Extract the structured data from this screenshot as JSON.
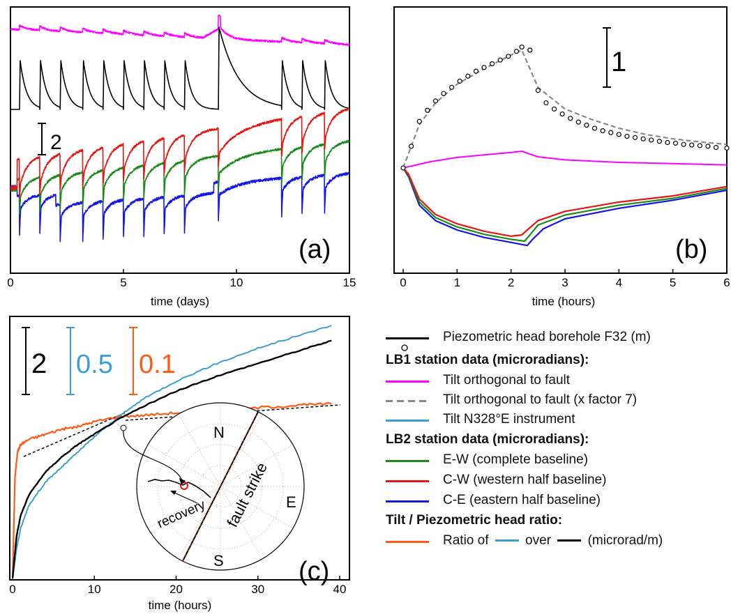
{
  "colors": {
    "magenta": "#ff00ff",
    "black": "#000000",
    "red": "#e8140f",
    "green": "#1a8a1a",
    "blue": "#1515e6",
    "gray": "#888888",
    "lightblue": "#3a9fd0",
    "orange": "#ff5a14"
  },
  "panels": {
    "a": {
      "label": "(a)",
      "xlabel": "time (days)",
      "xticks": [
        "0",
        "5",
        "10",
        "15"
      ],
      "scalebar": "2"
    },
    "b": {
      "label": "(b)",
      "xlabel": "time (hours)",
      "xticks": [
        "0",
        "1",
        "2",
        "3",
        "4",
        "5",
        "6"
      ],
      "scalebar": "1"
    },
    "c": {
      "label": "(c)",
      "xlabel": "time (hours)",
      "xticks": [
        "0",
        "10",
        "20",
        "30",
        "40"
      ],
      "scalebars": [
        "2",
        "0.5",
        "0.1"
      ],
      "inset": {
        "n": "N",
        "s": "S",
        "e": "E",
        "fault": "fault strike",
        "recovery": "recovery"
      }
    }
  },
  "legend": {
    "piezo": "Piezometric head borehole F32 (m)",
    "lb1_head": "LB1 station data (microradians):",
    "tilt_orth": "Tilt orthogonal to fault",
    "tilt_orth7": "Tilt orthogonal to fault (x factor 7)",
    "tilt_n328": "Tilt N328°E instrument",
    "lb2_head": "LB2 station data (microradians):",
    "ew": "E-W (complete baseline)",
    "cw": "C-W (western half baseline)",
    "ce": "C-E (eastern half baseline)",
    "ratio_head": "Tilt / Piezometric head ratio:",
    "ratio_a": "Ratio of",
    "ratio_b": "over",
    "ratio_c": "(microrad/m)"
  },
  "chart_data": [
    {
      "type": "line",
      "panel": "a",
      "xlabel": "time (days)",
      "xlim": [
        0,
        15
      ],
      "series": [
        {
          "name": "Tilt orthogonal to fault",
          "pattern": "slowly varying, small daily peaks, broad peak near day 9"
        },
        {
          "name": "Piezometric head borehole F32 (m)",
          "peaks_days": [
            0.4,
            1.3,
            2.2,
            3.2,
            4.1,
            5.0,
            5.9,
            6.8,
            7.7,
            9.2,
            12.0,
            12.9,
            13.9
          ],
          "pattern": "sharp rise then exponential decay"
        },
        {
          "name": "C-W (western half baseline)"
        },
        {
          "name": "E-W (complete baseline)"
        },
        {
          "name": "C-E (eastern half baseline)"
        }
      ]
    },
    {
      "type": "line",
      "panel": "b",
      "xlabel": "time (hours)",
      "xlim": [
        0,
        6
      ],
      "series": [
        {
          "name": "Piezometric head borehole F32 (m)",
          "marker": "circle",
          "x": [
            0,
            0.15,
            0.3,
            0.45,
            0.6,
            0.75,
            0.9,
            1.05,
            1.2,
            1.35,
            1.5,
            1.65,
            1.8,
            1.95,
            2.1,
            2.2,
            2.35,
            2.5,
            2.65,
            2.8,
            2.95,
            3.1,
            3.25,
            3.4,
            3.55,
            3.7,
            3.85,
            4.0,
            4.15,
            4.3,
            4.45,
            4.6,
            4.75,
            4.9,
            5.05,
            5.2,
            5.35,
            5.5,
            5.65,
            5.8,
            6.0
          ],
          "y": [
            0,
            0.35,
            0.75,
            0.93,
            1.08,
            1.2,
            1.3,
            1.4,
            1.48,
            1.56,
            1.62,
            1.68,
            1.74,
            1.8,
            1.88,
            1.95,
            1.9,
            1.25,
            1.05,
            0.95,
            0.87,
            0.8,
            0.74,
            0.69,
            0.64,
            0.6,
            0.57,
            0.54,
            0.51,
            0.49,
            0.47,
            0.45,
            0.43,
            0.41,
            0.4,
            0.38,
            0.37,
            0.36,
            0.35,
            0.33,
            0.32
          ]
        },
        {
          "name": "Tilt orthogonal to fault (x factor 7)",
          "x": [
            0,
            0.3,
            0.6,
            1.0,
            1.5,
            2.0,
            2.2,
            2.5,
            3.0,
            3.5,
            4.0,
            4.5,
            5.0,
            5.5,
            6.0
          ],
          "y": [
            0,
            0.7,
            1.05,
            1.35,
            1.6,
            1.82,
            1.9,
            1.3,
            0.95,
            0.78,
            0.64,
            0.54,
            0.47,
            0.42,
            0.38
          ]
        },
        {
          "name": "Tilt orthogonal to fault",
          "x": [
            0,
            0.5,
            1.0,
            1.5,
            2.0,
            2.2,
            2.5,
            3.0,
            4.0,
            5.0,
            6.0
          ],
          "y": [
            0,
            0.1,
            0.17,
            0.21,
            0.25,
            0.27,
            0.18,
            0.13,
            0.09,
            0.07,
            0.05
          ]
        },
        {
          "name": "C-W (western half baseline)",
          "x": [
            0,
            0.1,
            0.3,
            0.6,
            1.0,
            1.5,
            2.0,
            2.2,
            2.3,
            2.5,
            3.0,
            4.0,
            5.0,
            6.0
          ],
          "y": [
            0,
            -0.1,
            -0.5,
            -0.75,
            -0.9,
            -1.02,
            -1.1,
            -1.08,
            -1.0,
            -0.85,
            -0.7,
            -0.55,
            -0.45,
            -0.3
          ]
        },
        {
          "name": "E-W (complete baseline)",
          "x": [
            0,
            0.1,
            0.3,
            0.6,
            1.0,
            1.5,
            2.0,
            2.25,
            2.35,
            2.5,
            3.0,
            4.0,
            5.0,
            6.0
          ],
          "y": [
            0,
            -0.12,
            -0.55,
            -0.8,
            -0.95,
            -1.07,
            -1.15,
            -1.18,
            -1.08,
            -0.92,
            -0.76,
            -0.6,
            -0.49,
            -0.33
          ]
        },
        {
          "name": "C-E (eastern half baseline)",
          "x": [
            0,
            0.1,
            0.3,
            0.6,
            1.0,
            1.5,
            2.0,
            2.3,
            2.4,
            2.6,
            3.0,
            4.0,
            5.0,
            6.0
          ],
          "y": [
            0,
            -0.14,
            -0.6,
            -0.85,
            -1.0,
            -1.12,
            -1.2,
            -1.25,
            -1.15,
            -0.98,
            -0.82,
            -0.65,
            -0.52,
            -0.36
          ]
        }
      ]
    },
    {
      "type": "line",
      "panel": "c",
      "xlabel": "time (hours)",
      "xlim": [
        0,
        40
      ],
      "series": [
        {
          "name": "Tilt N328°E instrument",
          "x": [
            0,
            0.5,
            1,
            2,
            4,
            6,
            8,
            10,
            13,
            16,
            20,
            25,
            30,
            35,
            39
          ],
          "y": [
            0,
            0.12,
            0.2,
            0.29,
            0.38,
            0.44,
            0.5,
            0.56,
            0.64,
            0.71,
            0.78,
            0.85,
            0.91,
            0.96,
            1.0
          ]
        },
        {
          "name": "Piezometric head borehole F32 (m)",
          "x": [
            0,
            0.5,
            1,
            2,
            4,
            6,
            8,
            10,
            13,
            16,
            20,
            25,
            30,
            35,
            39
          ],
          "y": [
            0,
            0.17,
            0.25,
            0.33,
            0.42,
            0.48,
            0.53,
            0.57,
            0.63,
            0.68,
            0.74,
            0.8,
            0.85,
            0.9,
            0.94
          ]
        },
        {
          "name": "Ratio of Tilt N328°E instrument over Piezometric head",
          "x": [
            0,
            0.3,
            0.6,
            1,
            2,
            4,
            6,
            8,
            10,
            13,
            16,
            20,
            25,
            30,
            35,
            39
          ],
          "y": [
            0,
            0.4,
            0.5,
            0.53,
            0.55,
            0.57,
            0.59,
            0.6,
            0.62,
            0.64,
            0.645,
            0.655,
            0.665,
            0.675,
            0.685,
            0.69
          ]
        }
      ]
    }
  ]
}
